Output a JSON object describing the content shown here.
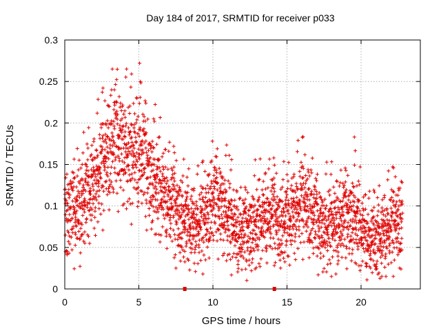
{
  "chart_data": {
    "type": "scatter",
    "title": "Day 184 of 2017, SRMTID for receiver p033",
    "xlabel": "GPS time / hours",
    "ylabel": "SRMTID / TECUs",
    "xlim": [
      0,
      24
    ],
    "ylim": [
      0,
      0.3
    ],
    "x_ticks": [
      0,
      5,
      10,
      15,
      20
    ],
    "x_tick_labels": [
      "0",
      "5",
      "10",
      "15",
      "20"
    ],
    "y_ticks": [
      0,
      0.05,
      0.1,
      0.15,
      0.2,
      0.25,
      0.3
    ],
    "y_tick_labels": [
      "0",
      "0.05",
      "0.1",
      "0.15",
      "0.2",
      "0.25",
      "0.3"
    ],
    "grid": true,
    "marker": "+",
    "color": "#e00000",
    "series": [
      {
        "name": "SRMTID",
        "trend": [
          [
            0.0,
            0.08
          ],
          [
            0.5,
            0.085
          ],
          [
            1.0,
            0.09
          ],
          [
            1.5,
            0.105
          ],
          [
            2.0,
            0.12
          ],
          [
            2.5,
            0.14
          ],
          [
            3.0,
            0.16
          ],
          [
            3.5,
            0.17
          ],
          [
            4.0,
            0.16
          ],
          [
            4.5,
            0.15
          ],
          [
            5.0,
            0.16
          ],
          [
            5.5,
            0.14
          ],
          [
            6.0,
            0.12
          ],
          [
            6.5,
            0.11
          ],
          [
            7.0,
            0.1
          ],
          [
            7.5,
            0.09
          ],
          [
            8.0,
            0.075
          ],
          [
            8.5,
            0.07
          ],
          [
            9.0,
            0.07
          ],
          [
            9.5,
            0.08
          ],
          [
            10.0,
            0.1
          ],
          [
            10.5,
            0.095
          ],
          [
            11.0,
            0.08
          ],
          [
            11.5,
            0.065
          ],
          [
            12.0,
            0.06
          ],
          [
            12.5,
            0.065
          ],
          [
            13.0,
            0.07
          ],
          [
            13.5,
            0.08
          ],
          [
            14.0,
            0.085
          ],
          [
            14.5,
            0.07
          ],
          [
            15.0,
            0.075
          ],
          [
            15.5,
            0.085
          ],
          [
            16.0,
            0.1
          ],
          [
            16.5,
            0.09
          ],
          [
            17.0,
            0.075
          ],
          [
            17.5,
            0.065
          ],
          [
            18.0,
            0.07
          ],
          [
            18.5,
            0.075
          ],
          [
            19.0,
            0.08
          ],
          [
            19.5,
            0.08
          ],
          [
            20.0,
            0.065
          ],
          [
            20.5,
            0.055
          ],
          [
            21.0,
            0.05
          ],
          [
            21.5,
            0.06
          ],
          [
            22.0,
            0.07
          ],
          [
            22.5,
            0.075
          ],
          [
            22.8,
            0.075
          ]
        ],
        "x_range": [
          0.0,
          22.8
        ],
        "point_count": 2600
      }
    ],
    "outliers": [
      [
        5.05,
        0.272
      ],
      [
        3.35,
        0.24
      ],
      [
        5.1,
        0.25
      ],
      [
        19.55,
        0.183
      ],
      [
        11.1,
        0.161
      ],
      [
        7.5,
        0.025
      ],
      [
        18.3,
        0.018
      ],
      [
        21.4,
        0.015
      ],
      [
        0.05,
        0.045
      ],
      [
        22.7,
        0.024
      ],
      [
        9.5,
        0.035
      ],
      [
        6.0,
        0.205
      ]
    ],
    "axis_markers": [
      8.1,
      14.15
    ]
  }
}
